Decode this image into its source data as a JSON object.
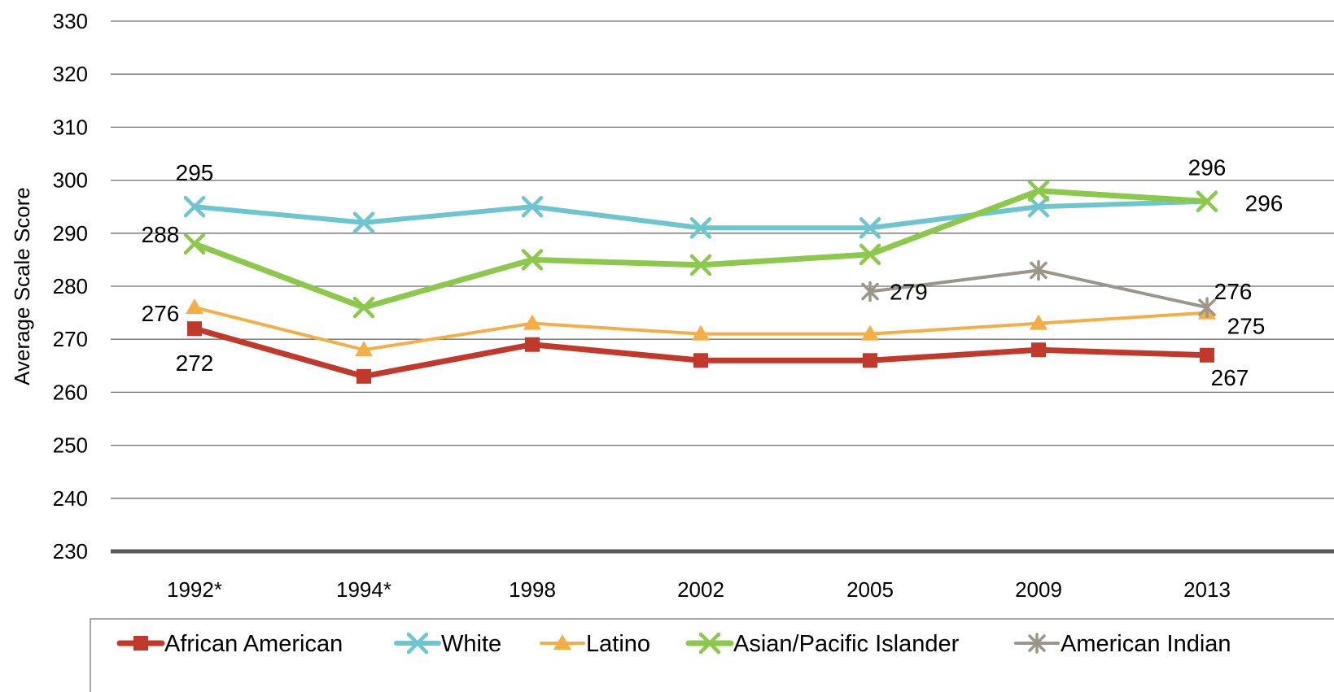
{
  "chart_data": {
    "type": "line",
    "title": "",
    "xlabel": "",
    "ylabel": "Average Scale Score",
    "categories": [
      "1992*",
      "1994*",
      "1998",
      "2002",
      "2005",
      "2009",
      "2013"
    ],
    "ylim": [
      230,
      330
    ],
    "yticks": [
      230,
      240,
      250,
      260,
      270,
      280,
      290,
      300,
      310,
      320,
      330
    ],
    "grid": true,
    "legend_position": "bottom",
    "series": [
      {
        "name": "African American",
        "color": "#c0392b",
        "marker": "square",
        "values": [
          272,
          263,
          269,
          266,
          266,
          268,
          267
        ]
      },
      {
        "name": "White",
        "color": "#6cc5cf",
        "marker": "x",
        "values": [
          295,
          292,
          295,
          291,
          291,
          295,
          296
        ]
      },
      {
        "name": "Latino",
        "color": "#f5ae45",
        "marker": "triangle",
        "values": [
          276,
          268,
          273,
          271,
          271,
          273,
          275
        ]
      },
      {
        "name": "Asian/Pacific Islander",
        "color": "#8cc84b",
        "marker": "x",
        "values": [
          288,
          276,
          285,
          284,
          286,
          298,
          296
        ]
      },
      {
        "name": "American Indian",
        "color": "#9c968a",
        "marker": "star",
        "values": [
          null,
          null,
          null,
          null,
          279,
          283,
          276
        ]
      }
    ],
    "data_labels": [
      {
        "series": 0,
        "index": 0,
        "text": "272"
      },
      {
        "series": 0,
        "index": 6,
        "text": "267"
      },
      {
        "series": 1,
        "index": 0,
        "text": "295"
      },
      {
        "series": 1,
        "index": 6,
        "text": "296"
      },
      {
        "series": 2,
        "index": 0,
        "text": "276"
      },
      {
        "series": 2,
        "index": 6,
        "text": "275"
      },
      {
        "series": 3,
        "index": 0,
        "text": "288"
      },
      {
        "series": 3,
        "index": 6,
        "text": "296"
      },
      {
        "series": 4,
        "index": 4,
        "text": "279"
      },
      {
        "series": 4,
        "index": 6,
        "text": "276"
      }
    ]
  }
}
